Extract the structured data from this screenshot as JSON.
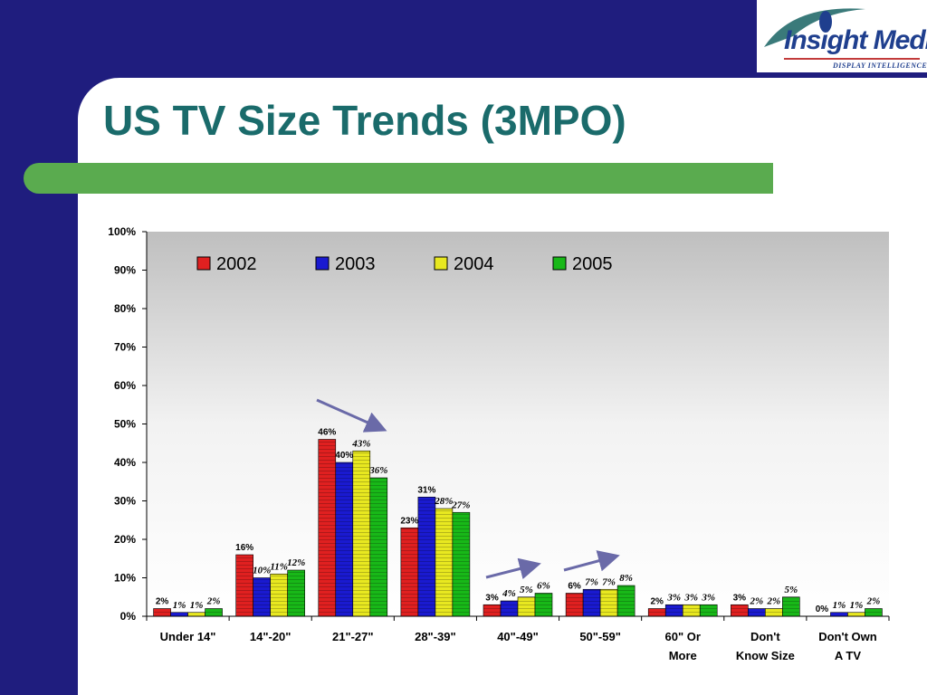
{
  "slide": {
    "title": "US TV Size Trends (3MPO)",
    "logo": {
      "name": "Insight Media",
      "tagline": "DISPLAY INTELLIGENCE™"
    }
  },
  "colors": {
    "background": "#1f1d7e",
    "title": "#1a6b6b",
    "accent_bar": "#5aab4f",
    "arrow": "#6a6aa8"
  },
  "chart_data": {
    "type": "bar",
    "title": "",
    "xlabel": "",
    "ylabel": "",
    "ylim": [
      0,
      100
    ],
    "y_ticks": [
      "0%",
      "10%",
      "20%",
      "30%",
      "40%",
      "50%",
      "60%",
      "70%",
      "80%",
      "90%",
      "100%"
    ],
    "grid": false,
    "legend_position": "top",
    "categories": [
      "Under 14\"",
      "14\"-20\"",
      "21\"-27\"",
      "28\"-39\"",
      "40\"-49\"",
      "50\"-59\"",
      "60\" Or More",
      "Don't Know Size",
      "Don't Own A TV"
    ],
    "category_lines": [
      [
        "Under 14\""
      ],
      [
        "14\"-20\""
      ],
      [
        "21\"-27\""
      ],
      [
        "28\"-39\""
      ],
      [
        "40\"-49\""
      ],
      [
        "50\"-59\""
      ],
      [
        "60\" Or",
        "More"
      ],
      [
        "Don't",
        "Know Size"
      ],
      [
        "Don't Own",
        "A TV"
      ]
    ],
    "series": [
      {
        "name": "2002",
        "color": "#e02020",
        "values": [
          2,
          16,
          46,
          23,
          3,
          6,
          2,
          3,
          0
        ]
      },
      {
        "name": "2003",
        "color": "#1a1ad0",
        "values": [
          1,
          10,
          40,
          31,
          4,
          7,
          3,
          2,
          1
        ]
      },
      {
        "name": "2004",
        "color": "#e8e820",
        "values": [
          1,
          11,
          43,
          28,
          5,
          7,
          3,
          2,
          1
        ]
      },
      {
        "name": "2005",
        "color": "#18b818",
        "values": [
          2,
          12,
          36,
          27,
          6,
          8,
          3,
          5,
          2
        ]
      }
    ],
    "annotations": [
      "downward trend arrow over 21\"-27\"",
      "upward trend arrow over 40\"-49\"",
      "upward trend arrow over 50\"-59\""
    ]
  }
}
